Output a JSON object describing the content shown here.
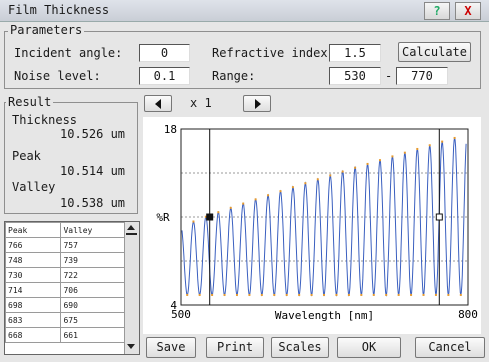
{
  "window": {
    "title": "Film Thickness",
    "help_label": "?",
    "close_label": "X"
  },
  "parameters": {
    "group_label": "Parameters",
    "incident_angle_label": "Incident angle:",
    "incident_angle_value": "0",
    "refractive_index_label": "Refractive index:",
    "refractive_index_value": "1.5",
    "calculate_label": "Calculate",
    "noise_level_label": "Noise level:",
    "noise_level_value": "0.1",
    "range_label": "Range:",
    "range_min": "530",
    "range_sep": "-",
    "range_max": "770"
  },
  "result": {
    "group_label": "Result",
    "thickness_label": "Thickness",
    "thickness_value": "10.526 um",
    "peak_label": "Peak",
    "peak_value": "10.514 um",
    "valley_label": "Valley",
    "valley_value": "10.538 um"
  },
  "table": {
    "headers": [
      "Peak",
      "Valley"
    ],
    "rows": [
      [
        "766",
        "757"
      ],
      [
        "748",
        "739"
      ],
      [
        "730",
        "722"
      ],
      [
        "714",
        "706"
      ],
      [
        "698",
        "690"
      ],
      [
        "683",
        "675"
      ],
      [
        "668",
        "661"
      ]
    ]
  },
  "zoom": {
    "label": "x 1",
    "left_icon": "left-arrow-icon",
    "right_icon": "right-arrow-icon"
  },
  "chart_data": {
    "type": "line",
    "xlabel": "Wavelength [nm]",
    "ylabel": "%R",
    "xlim": [
      500,
      800
    ],
    "ylim": [
      4,
      18
    ],
    "x_ticks": [
      "500",
      "800"
    ],
    "y_ticks": [
      "4",
      "18"
    ],
    "grid": true,
    "cursor_markers": [
      530,
      770
    ],
    "series": [
      {
        "color": "#3a5fbf",
        "period_nm_approx": 13,
        "min": 4.8,
        "max_start": 10.2,
        "max_end": 17.6
      }
    ],
    "point_color": "#e69a2e"
  },
  "buttons": {
    "save": "Save",
    "print": "Print",
    "scales": "Scales",
    "ok": "OK",
    "cancel": "Cancel"
  }
}
